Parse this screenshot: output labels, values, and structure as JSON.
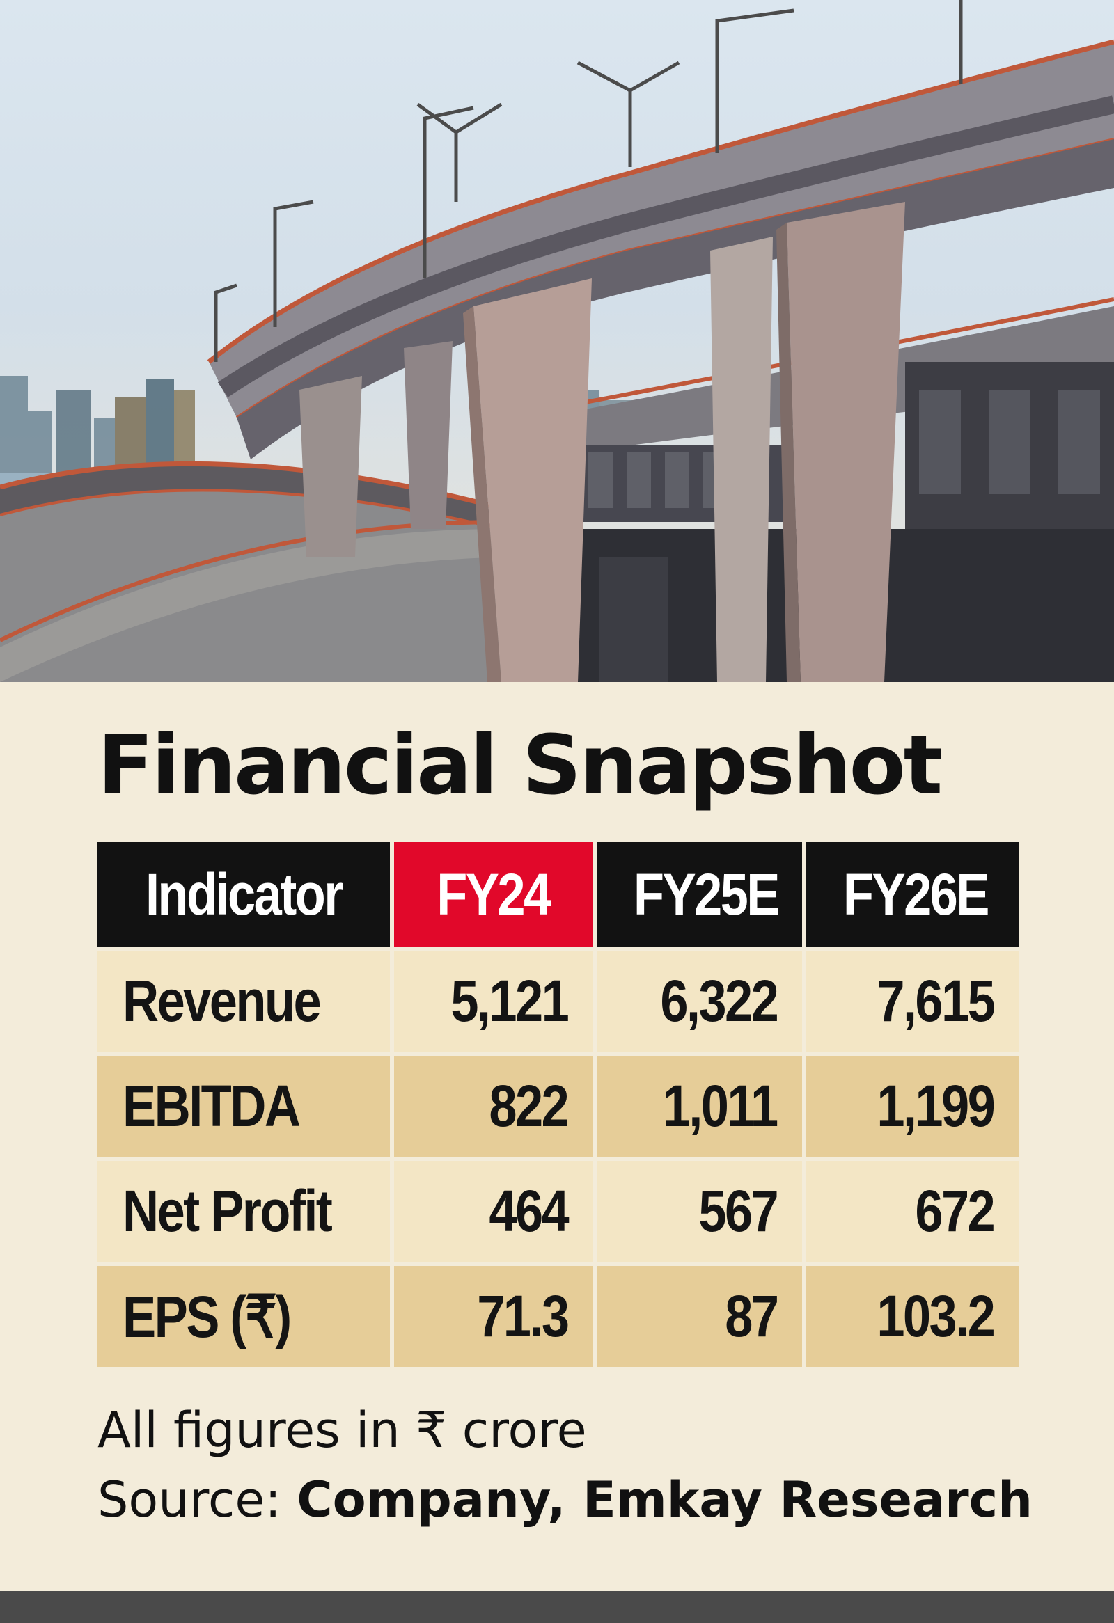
{
  "hero": {
    "illustration": "flyover-bridge-sketch"
  },
  "title": "Financial Snapshot",
  "chart_data": {
    "type": "table",
    "columns": [
      "Indicator",
      "FY24",
      "FY25E",
      "FY26E"
    ],
    "highlight_column": "FY24",
    "rows": [
      {
        "label": "Revenue",
        "values": [
          "5,121",
          "6,322",
          "7,615"
        ]
      },
      {
        "label": "EBITDA",
        "values": [
          "822",
          "1,011",
          "1,199"
        ]
      },
      {
        "label": "Net Profit",
        "values": [
          "464",
          "567",
          "672"
        ]
      },
      {
        "label": "EPS (₹)",
        "values": [
          "71.3",
          "87",
          "103.2"
        ]
      }
    ]
  },
  "colors": {
    "header_bg": "#121212",
    "highlight_header_bg": "#e1082a",
    "row_light": "#f3e6c5",
    "row_dark": "#e6cd98",
    "page_bg": "#f3ecda"
  },
  "note": "All figures in ₹ crore",
  "source": {
    "label": "Source:",
    "value": "Company, Emkay Research"
  }
}
